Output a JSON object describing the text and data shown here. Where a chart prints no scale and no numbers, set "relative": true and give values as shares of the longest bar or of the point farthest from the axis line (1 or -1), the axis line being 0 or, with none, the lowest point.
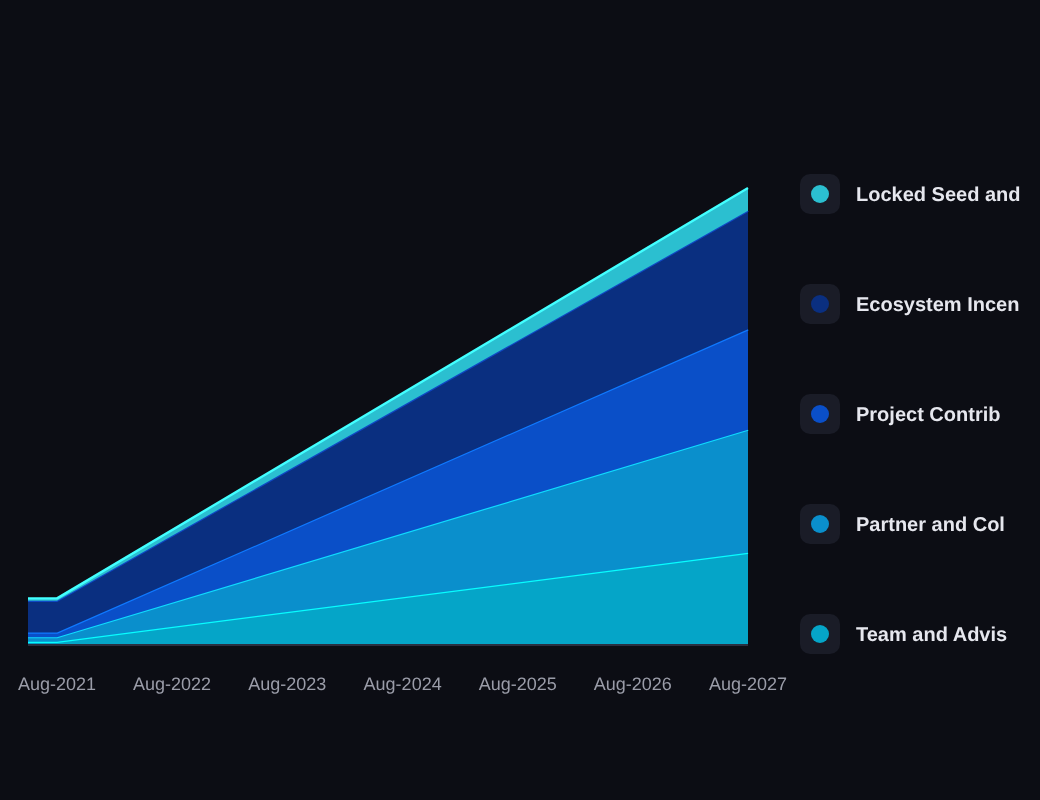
{
  "chart_data": {
    "type": "area",
    "stacked": true,
    "relative": true,
    "x": [
      "2021-05",
      "2021-08",
      "2027-08"
    ],
    "xlim": [
      "2021-05",
      "2027-08"
    ],
    "xticks": [
      {
        "value": "2021-08",
        "label": "Aug-2021"
      },
      {
        "value": "2022-08",
        "label": "Aug-2022"
      },
      {
        "value": "2023-08",
        "label": "Aug-2023"
      },
      {
        "value": "2024-08",
        "label": "Aug-2024"
      },
      {
        "value": "2025-08",
        "label": "Aug-2025"
      },
      {
        "value": "2026-08",
        "label": "Aug-2026"
      },
      {
        "value": "2027-08",
        "label": "Aug-2027"
      }
    ],
    "series": [
      {
        "name": "Team and Advis",
        "color": "#05a5c8",
        "values": [
          0.005,
          0.005,
          0.2
        ]
      },
      {
        "name": "Partner and Col",
        "color": "#0a8fcc",
        "values": [
          0.01,
          0.01,
          0.27
        ]
      },
      {
        "name": "Project Contrib",
        "color": "#0a4fc8",
        "values": [
          0.01,
          0.01,
          0.22
        ]
      },
      {
        "name": "Ecosystem Incen",
        "color": "#0a2f80",
        "values": [
          0.07,
          0.07,
          0.26
        ]
      },
      {
        "name": "Locked Seed and",
        "color": "#2bbfd0",
        "values": [
          0.005,
          0.005,
          0.05
        ]
      }
    ],
    "legend": "right",
    "grid": false
  }
}
